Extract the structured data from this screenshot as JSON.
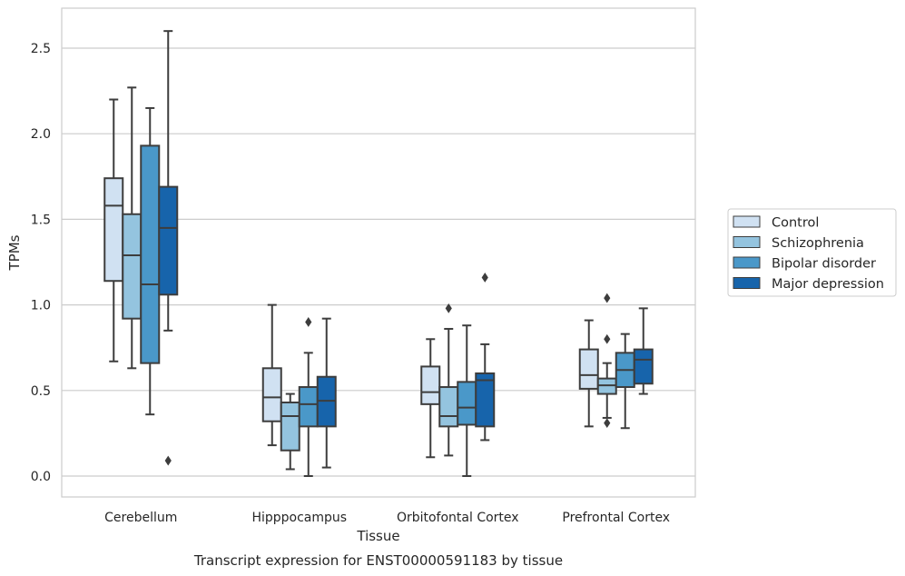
{
  "chart_data": {
    "type": "boxplot",
    "xlabel": "Tissue",
    "ylabel": "TPMs",
    "caption": "Transcript expression for ENST00000591183 by tissue",
    "ylim": [
      -0.12,
      2.72
    ],
    "yticks": [
      0.0,
      0.5,
      1.0,
      1.5,
      2.0,
      2.5
    ],
    "ytick_labels": [
      "0.0",
      "0.5",
      "1.0",
      "1.5",
      "2.0",
      "2.5"
    ],
    "grid": "horizontal",
    "legend_position": "right",
    "categories": [
      "Cerebellum",
      "Hipppocampus",
      "Orbitofontal Cortex",
      "Prefrontal Cortex"
    ],
    "series": [
      {
        "name": "Control",
        "color": "#d0e1f2",
        "boxes": [
          {
            "whislo": 0.67,
            "q1": 1.14,
            "med": 1.58,
            "q3": 1.74,
            "whishi": 2.2,
            "fliers": []
          },
          {
            "whislo": 0.18,
            "q1": 0.32,
            "med": 0.46,
            "q3": 0.63,
            "whishi": 1.0,
            "fliers": []
          },
          {
            "whislo": 0.11,
            "q1": 0.42,
            "med": 0.49,
            "q3": 0.64,
            "whishi": 0.8,
            "fliers": []
          },
          {
            "whislo": 0.29,
            "q1": 0.51,
            "med": 0.59,
            "q3": 0.74,
            "whishi": 0.91,
            "fliers": []
          }
        ]
      },
      {
        "name": "Schizophrenia",
        "color": "#94c4df",
        "boxes": [
          {
            "whislo": 0.63,
            "q1": 0.92,
            "med": 1.29,
            "q3": 1.53,
            "whishi": 2.27,
            "fliers": []
          },
          {
            "whislo": 0.04,
            "q1": 0.15,
            "med": 0.35,
            "q3": 0.43,
            "whishi": 0.48,
            "fliers": []
          },
          {
            "whislo": 0.12,
            "q1": 0.29,
            "med": 0.35,
            "q3": 0.52,
            "whishi": 0.86,
            "fliers": [
              0.98
            ]
          },
          {
            "whislo": 0.34,
            "q1": 0.48,
            "med": 0.53,
            "q3": 0.57,
            "whishi": 0.66,
            "fliers": [
              1.04,
              0.8,
              0.31
            ]
          }
        ]
      },
      {
        "name": "Bipolar disorder",
        "color": "#4a98c9",
        "boxes": [
          {
            "whislo": 0.36,
            "q1": 0.66,
            "med": 1.12,
            "q3": 1.93,
            "whishi": 2.15,
            "fliers": []
          },
          {
            "whislo": 0.0,
            "q1": 0.29,
            "med": 0.42,
            "q3": 0.52,
            "whishi": 0.72,
            "fliers": [
              0.9
            ]
          },
          {
            "whislo": 0.0,
            "q1": 0.3,
            "med": 0.4,
            "q3": 0.55,
            "whishi": 0.88,
            "fliers": []
          },
          {
            "whislo": 0.28,
            "q1": 0.52,
            "med": 0.62,
            "q3": 0.72,
            "whishi": 0.83,
            "fliers": []
          }
        ]
      },
      {
        "name": "Major depression",
        "color": "#1764ab",
        "boxes": [
          {
            "whislo": 0.85,
            "q1": 1.06,
            "med": 1.45,
            "q3": 1.69,
            "whishi": 2.6,
            "fliers": [
              0.09
            ]
          },
          {
            "whislo": 0.05,
            "q1": 0.29,
            "med": 0.44,
            "q3": 0.58,
            "whishi": 0.92,
            "fliers": []
          },
          {
            "whislo": 0.21,
            "q1": 0.29,
            "med": 0.56,
            "q3": 0.6,
            "whishi": 0.77,
            "fliers": [
              1.16
            ]
          },
          {
            "whislo": 0.48,
            "q1": 0.54,
            "med": 0.68,
            "q3": 0.74,
            "whishi": 0.98,
            "fliers": []
          }
        ]
      }
    ]
  }
}
